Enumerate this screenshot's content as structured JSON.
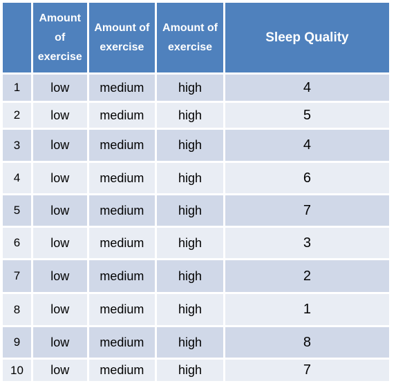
{
  "table": {
    "headers": [
      "",
      "Amount of exercise",
      "Amount of exercise",
      "Amount of exercise",
      "Sleep Quality"
    ],
    "rows": [
      [
        "1",
        "low",
        "medium",
        "high",
        "4"
      ],
      [
        "2",
        "low",
        "medium",
        "high",
        "5"
      ],
      [
        "3",
        "low",
        "medium",
        "high",
        "4"
      ],
      [
        "4",
        "low",
        "medium",
        "high",
        "6"
      ],
      [
        "5",
        "low",
        "medium",
        "high",
        "7"
      ],
      [
        "6",
        "low",
        "medium",
        "high",
        "3"
      ],
      [
        "7",
        "low",
        "medium",
        "high",
        "2"
      ],
      [
        "8",
        "low",
        "medium",
        "high",
        "1"
      ],
      [
        "9",
        "low",
        "medium",
        "high",
        "8"
      ],
      [
        "10",
        "low",
        "medium",
        "high",
        "7"
      ]
    ]
  },
  "colors": {
    "header_bg": "#4f81bd",
    "row_band_dark": "#d0d8e8",
    "row_band_light": "#e9edf4"
  }
}
